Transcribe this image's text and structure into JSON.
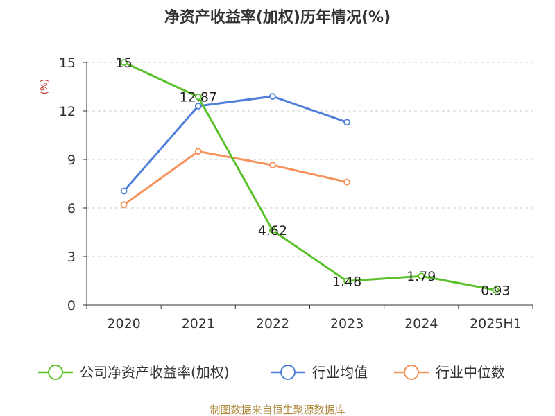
{
  "chart_data": {
    "type": "line",
    "title": "净资产收益率(加权)历年情况(%)",
    "ylabel": "(%)",
    "xlabel": "",
    "categories": [
      "2020",
      "2021",
      "2022",
      "2023",
      "2024",
      "2025H1"
    ],
    "ylim": [
      0,
      15
    ],
    "yticks": [
      0,
      3,
      6,
      9,
      12,
      15
    ],
    "grid": true,
    "legend_position": "bottom",
    "series": [
      {
        "name": "公司净资产收益率(加权)",
        "color": "#5ac12b",
        "values": [
          15,
          12.87,
          4.62,
          1.48,
          1.79,
          0.93
        ],
        "labels": [
          "15",
          "12.87",
          "4.62",
          "1.48",
          "1.79",
          "0.93"
        ]
      },
      {
        "name": "行业均值",
        "color": "#4f7fdb",
        "values": [
          7.05,
          12.3,
          12.9,
          11.3,
          null,
          null
        ]
      },
      {
        "name": "行业中位数",
        "color": "#f5915b",
        "values": [
          6.2,
          9.5,
          8.65,
          7.6,
          null,
          null
        ]
      }
    ]
  },
  "source": "制图数据来自恒生聚源数据库"
}
